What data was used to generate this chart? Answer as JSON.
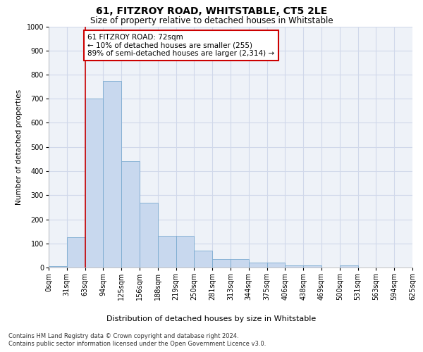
{
  "title": "61, FITZROY ROAD, WHITSTABLE, CT5 2LE",
  "subtitle": "Size of property relative to detached houses in Whitstable",
  "xlabel": "Distribution of detached houses by size in Whitstable",
  "ylabel": "Number of detached properties",
  "footnote1": "Contains HM Land Registry data © Crown copyright and database right 2024.",
  "footnote2": "Contains public sector information licensed under the Open Government Licence v3.0.",
  "bin_labels": [
    "0sqm",
    "31sqm",
    "63sqm",
    "94sqm",
    "125sqm",
    "156sqm",
    "188sqm",
    "219sqm",
    "250sqm",
    "281sqm",
    "313sqm",
    "344sqm",
    "375sqm",
    "406sqm",
    "438sqm",
    "469sqm",
    "500sqm",
    "531sqm",
    "563sqm",
    "594sqm",
    "625sqm"
  ],
  "bar_values": [
    5,
    125,
    700,
    775,
    440,
    270,
    130,
    130,
    70,
    35,
    35,
    20,
    20,
    10,
    10,
    0,
    10,
    0,
    0,
    0
  ],
  "bar_color": "#c8d8ee",
  "bar_edge_color": "#7aaad0",
  "vline_x_idx": 2,
  "vline_color": "#cc0000",
  "annotation_text": "61 FITZROY ROAD: 72sqm\n← 10% of detached houses are smaller (255)\n89% of semi-detached houses are larger (2,314) →",
  "annotation_box_color": "#ffffff",
  "annotation_box_edge": "#cc0000",
  "ylim": [
    0,
    1000
  ],
  "yticks": [
    0,
    100,
    200,
    300,
    400,
    500,
    600,
    700,
    800,
    900,
    1000
  ],
  "grid_color": "#d0d8ea",
  "bg_color": "#eef2f8",
  "title_fontsize": 10,
  "subtitle_fontsize": 8.5,
  "ylabel_fontsize": 7.5,
  "xlabel_fontsize": 8,
  "tick_fontsize": 7,
  "annot_fontsize": 7.5,
  "footnote_fontsize": 6
}
